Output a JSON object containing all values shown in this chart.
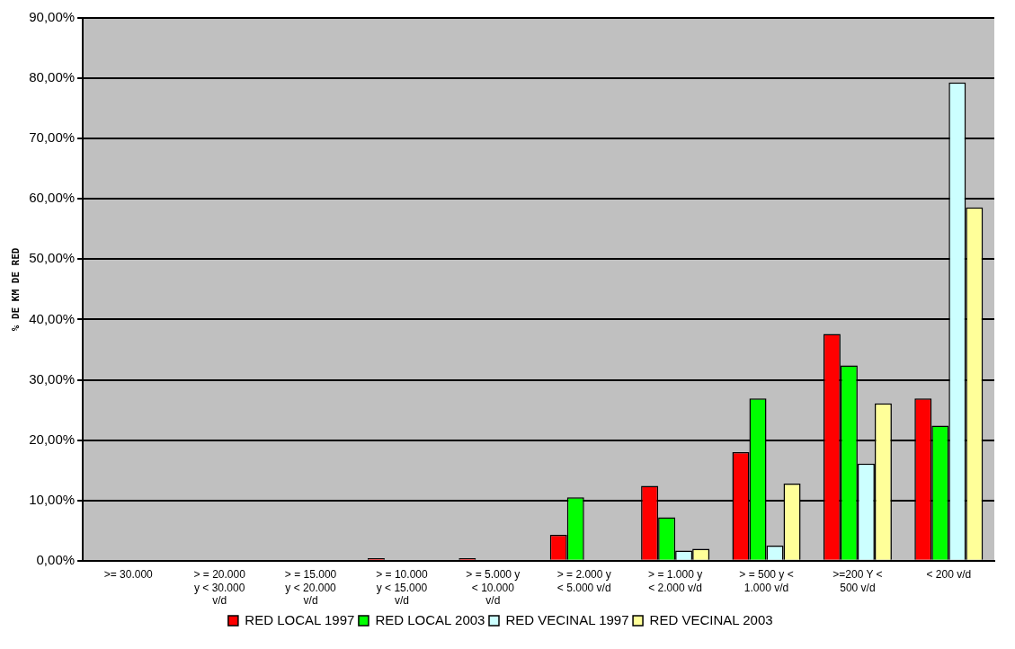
{
  "chart_data": {
    "type": "bar",
    "ylabel": "% DE KM DE RED",
    "categories": [
      ">= 30.000",
      "> = 20.000 y < 30.000 v/d",
      "> = 15.000 y < 20.000 v/d",
      "> = 10.000 y < 15.000 v/d",
      "> = 5.000 y < 10.000 v/d",
      "> = 2.000 y < 5.000 v/d",
      "> = 1.000 y < 2.000 v/d",
      "> = 500 y < 1.000 v/d",
      ">=200 Y < 500 v/d",
      "< 200 v/d"
    ],
    "series": [
      {
        "name": "RED LOCAL 1997",
        "color": "#ff0000",
        "values": [
          null,
          null,
          null,
          0.4,
          0.4,
          4.3,
          12.4,
          18.0,
          37.6,
          26.9
        ]
      },
      {
        "name": "RED LOCAL 2003",
        "color": "#00ff00",
        "values": [
          null,
          null,
          null,
          null,
          null,
          10.5,
          7.2,
          26.9,
          32.4,
          22.4
        ]
      },
      {
        "name": "RED VECINAL 1997",
        "color": "#ccffff",
        "values": [
          null,
          null,
          null,
          null,
          null,
          null,
          1.7,
          2.5,
          16.1,
          79.3
        ]
      },
      {
        "name": "RED VECINAL 2003",
        "color": "#ffff99",
        "values": [
          null,
          null,
          null,
          null,
          null,
          null,
          2.0,
          12.8,
          26.1,
          58.6
        ]
      }
    ],
    "ylim": [
      0,
      90
    ],
    "yticks": [
      {
        "value": 0,
        "label": "0,00%"
      },
      {
        "value": 10,
        "label": "10,00%"
      },
      {
        "value": 20,
        "label": "20,00%"
      },
      {
        "value": 30,
        "label": "30,00%"
      },
      {
        "value": 40,
        "label": "40,00%"
      },
      {
        "value": 50,
        "label": "50,00%"
      },
      {
        "value": 60,
        "label": "60,00%"
      },
      {
        "value": 70,
        "label": "70,00%"
      },
      {
        "value": 80,
        "label": "80,00%"
      },
      {
        "value": 90,
        "label": "90,00%"
      }
    ],
    "grid": "y",
    "legend": "bottom"
  }
}
